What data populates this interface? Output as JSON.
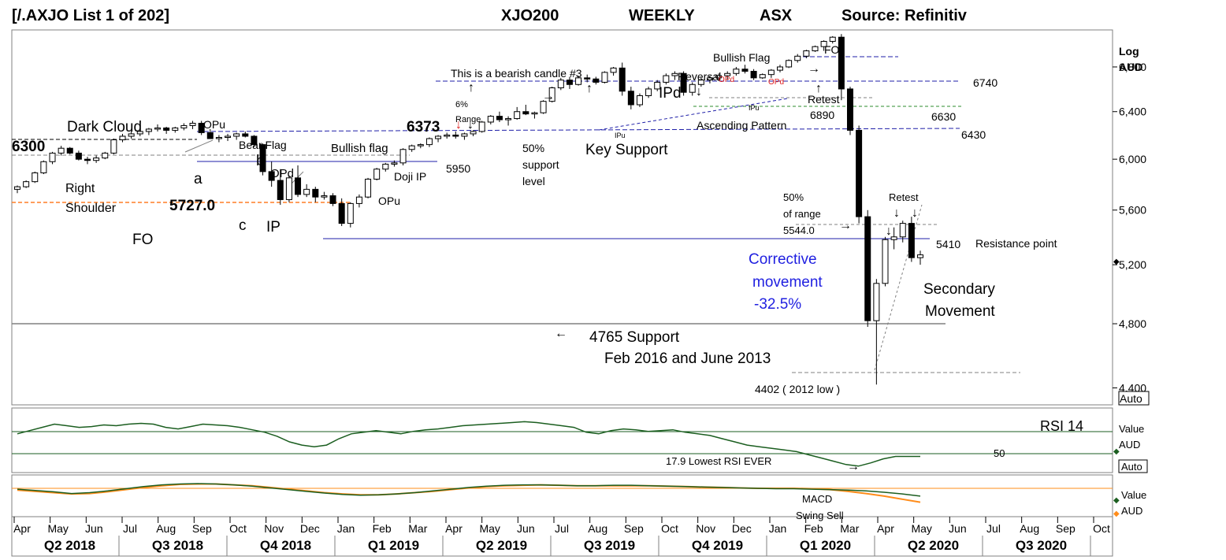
{
  "header": {
    "list_label": "[/.AXJO List 1 of 202]",
    "symbol": "XJO200",
    "period": "WEEKLY",
    "exchange": "ASX",
    "source": "Source: Refinitiv"
  },
  "price_axis": {
    "scale_label": "Log",
    "currency": "AUD",
    "ticks": [
      "6,800",
      "6,400",
      "6,000",
      "5,600",
      "5,200",
      "4,800",
      "4,400"
    ],
    "tick_values": [
      6800,
      6400,
      6000,
      5600,
      5200,
      4800,
      4400
    ],
    "auto_label": "Auto"
  },
  "rsi_panel": {
    "name": "RSI 14",
    "axis_label_1": "Value",
    "axis_label_2": "AUD",
    "auto_label": "Auto",
    "level_label": "50",
    "note": "17.9  Lowest RSI EVER"
  },
  "macd_panel": {
    "name": "MACD",
    "note": "Swing Sell",
    "axis_label_1": "Value",
    "axis_label_2": "AUD"
  },
  "time_axis": {
    "months": [
      "Apr",
      "May",
      "Jun",
      "Jul",
      "Aug",
      "Sep",
      "Oct",
      "Nov",
      "Dec",
      "Jan",
      "Feb",
      "Mar",
      "Apr",
      "May",
      "Jun",
      "Jul",
      "Aug",
      "Sep",
      "Oct",
      "Nov",
      "Dec",
      "Jan",
      "Feb",
      "Mar",
      "Apr",
      "May",
      "Jun",
      "Jul",
      "Aug",
      "Sep",
      "Oct"
    ],
    "quarters": [
      "Q2 2018",
      "Q3 2018",
      "Q4 2018",
      "Q1 2019",
      "Q2 2019",
      "Q3 2019",
      "Q4 2019",
      "Q1 2020",
      "Q2 2020",
      "Q3 2020"
    ]
  },
  "annotations": {
    "dark_cloud": "Dark Cloud",
    "level_6300": "6300",
    "right": "Right",
    "shoulder": "Shoulder",
    "fo_left": "FO",
    "opu_1": "OPu",
    "bear_flag": "Bear Flag",
    "a": "a",
    "b": "b",
    "c": "c",
    "opd_1": "OPd",
    "ip": "IP",
    "level_5727": "5727.0",
    "bullish_flag_1": "Bullish flag",
    "doji_ip": "Doji IP",
    "opu_2": "OPu",
    "level_6373": "6373",
    "pct6": "6%",
    "range": "Range",
    "level_5950": "5950",
    "pct50_a": "50%",
    "support": "support",
    "level": "level",
    "bearish_candle": "This is a bearish candle #3",
    "key_support": "Key Support",
    "ipd": "IPd",
    "ipu_1": "IPu",
    "ipu_2": "IPu",
    "reversal": "Reversal",
    "opd_red": "OPd",
    "opd_red_2": "OPd",
    "ascending_pattern": "Ascending Pattern",
    "bullish_flag_2": "Bullish Flag",
    "fo_top": "FO",
    "retest_1": "Retest",
    "level_6740": "6740",
    "level_6890": "6890",
    "level_6630": "6630",
    "level_6430": "6430",
    "pct50_b": "50%",
    "of_range": "of range",
    "level_5544": "5544.0",
    "retest_2": "Retest",
    "level_5410": "5410",
    "resistance_point": "Resistance point",
    "corrective_1": "Corrective",
    "corrective_2": "movement",
    "corrective_3": "-32.5%",
    "secondary_1": "Secondary",
    "secondary_2": "Movement",
    "support_4765": "4765 Support",
    "feb2016": "Feb 2016 and June 2013",
    "low_4402": "4402 ( 2012 low )"
  },
  "colors": {
    "corrective_text": "#1f1fe0",
    "red_annotation": "#e02020",
    "rsi_line": "#1b5e20",
    "macd_line": "#1b5e20",
    "signal_line": "#ff8c1a",
    "support_dash": "#ff7f27",
    "resistance_blue": "#1f1fa8",
    "green_dash": "#2e8b2e"
  },
  "chart_data": {
    "type": "candlestick",
    "title": "XJO200 WEEKLY ASX",
    "scale": "log",
    "ylim": [
      4300,
      7150
    ],
    "x_range": [
      "2018-04",
      "2020-10"
    ],
    "price_ohlc_weekly": [
      [
        5760,
        5790,
        5730,
        5780
      ],
      [
        5780,
        5830,
        5770,
        5820
      ],
      [
        5820,
        5900,
        5810,
        5890
      ],
      [
        5890,
        5990,
        5880,
        5980
      ],
      [
        5980,
        6060,
        5960,
        6050
      ],
      [
        6050,
        6110,
        6030,
        6090
      ],
      [
        6090,
        6100,
        6040,
        6050
      ],
      [
        6050,
        6070,
        5990,
        6000
      ],
      [
        6000,
        6020,
        5960,
        5990
      ],
      [
        5990,
        6030,
        5970,
        6010
      ],
      [
        6010,
        6060,
        6000,
        6050
      ],
      [
        6050,
        6170,
        6040,
        6160
      ],
      [
        6160,
        6210,
        6140,
        6190
      ],
      [
        6190,
        6240,
        6170,
        6210
      ],
      [
        6210,
        6250,
        6190,
        6230
      ],
      [
        6230,
        6260,
        6200,
        6250
      ],
      [
        6250,
        6290,
        6230,
        6260
      ],
      [
        6260,
        6270,
        6210,
        6240
      ],
      [
        6240,
        6270,
        6220,
        6260
      ],
      [
        6260,
        6300,
        6240,
        6280
      ],
      [
        6280,
        6320,
        6250,
        6300
      ],
      [
        6300,
        6320,
        6200,
        6220
      ],
      [
        6220,
        6250,
        6170,
        6170
      ],
      [
        6170,
        6200,
        6140,
        6180
      ],
      [
        6180,
        6210,
        6150,
        6190
      ],
      [
        6190,
        6220,
        6160,
        6210
      ],
      [
        6210,
        6230,
        6180,
        6190
      ],
      [
        6190,
        6200,
        6100,
        6120
      ],
      [
        6120,
        6130,
        5870,
        5900
      ],
      [
        5900,
        5980,
        5780,
        5830
      ],
      [
        5830,
        5920,
        5640,
        5680
      ],
      [
        5680,
        5870,
        5660,
        5850
      ],
      [
        5850,
        5950,
        5700,
        5720
      ],
      [
        5720,
        5800,
        5700,
        5760
      ],
      [
        5760,
        5780,
        5660,
        5700
      ],
      [
        5700,
        5740,
        5680,
        5710
      ],
      [
        5710,
        5730,
        5630,
        5650
      ],
      [
        5650,
        5690,
        5480,
        5500
      ],
      [
        5500,
        5660,
        5470,
        5650
      ],
      [
        5650,
        5720,
        5620,
        5700
      ],
      [
        5700,
        5850,
        5690,
        5840
      ],
      [
        5840,
        5930,
        5830,
        5920
      ],
      [
        5920,
        5970,
        5900,
        5960
      ],
      [
        5960,
        5990,
        5940,
        5970
      ],
      [
        5970,
        6090,
        5950,
        6080
      ],
      [
        6080,
        6120,
        6060,
        6110
      ],
      [
        6110,
        6130,
        6090,
        6120
      ],
      [
        6120,
        6180,
        6100,
        6170
      ],
      [
        6170,
        6200,
        6140,
        6190
      ],
      [
        6190,
        6220,
        6170,
        6200
      ],
      [
        6200,
        6230,
        6170,
        6190
      ],
      [
        6190,
        6220,
        6160,
        6210
      ],
      [
        6210,
        6240,
        6190,
        6230
      ],
      [
        6230,
        6320,
        6220,
        6310
      ],
      [
        6310,
        6370,
        6290,
        6360
      ],
      [
        6360,
        6400,
        6310,
        6330
      ],
      [
        6330,
        6360,
        6280,
        6340
      ],
      [
        6340,
        6440,
        6330,
        6400
      ],
      [
        6400,
        6460,
        6370,
        6380
      ],
      [
        6380,
        6400,
        6340,
        6390
      ],
      [
        6390,
        6500,
        6380,
        6490
      ],
      [
        6490,
        6620,
        6480,
        6610
      ],
      [
        6610,
        6700,
        6590,
        6680
      ],
      [
        6680,
        6710,
        6600,
        6640
      ],
      [
        6640,
        6720,
        6630,
        6700
      ],
      [
        6700,
        6730,
        6660,
        6690
      ],
      [
        6690,
        6710,
        6640,
        6660
      ],
      [
        6660,
        6760,
        6650,
        6750
      ],
      [
        6750,
        6800,
        6720,
        6790
      ],
      [
        6790,
        6840,
        6540,
        6580
      ],
      [
        6580,
        6620,
        6420,
        6460
      ],
      [
        6460,
        6560,
        6440,
        6540
      ],
      [
        6540,
        6620,
        6520,
        6600
      ],
      [
        6600,
        6680,
        6580,
        6660
      ],
      [
        6660,
        6740,
        6640,
        6720
      ],
      [
        6720,
        6760,
        6680,
        6740
      ],
      [
        6740,
        6760,
        6540,
        6570
      ],
      [
        6570,
        6660,
        6540,
        6640
      ],
      [
        6640,
        6700,
        6620,
        6680
      ],
      [
        6680,
        6720,
        6650,
        6700
      ],
      [
        6700,
        6740,
        6670,
        6720
      ],
      [
        6720,
        6760,
        6680,
        6740
      ],
      [
        6740,
        6800,
        6720,
        6780
      ],
      [
        6780,
        6820,
        6740,
        6760
      ],
      [
        6760,
        6780,
        6680,
        6700
      ],
      [
        6700,
        6740,
        6690,
        6730
      ],
      [
        6730,
        6780,
        6700,
        6770
      ],
      [
        6770,
        6820,
        6750,
        6800
      ],
      [
        6800,
        6870,
        6790,
        6860
      ],
      [
        6860,
        6920,
        6840,
        6900
      ],
      [
        6900,
        6960,
        6880,
        6950
      ],
      [
        6950,
        7000,
        6940,
        6990
      ],
      [
        6990,
        7050,
        6950,
        7040
      ],
      [
        7040,
        7090,
        7020,
        7080
      ],
      [
        7080,
        7110,
        6500,
        6600
      ],
      [
        6600,
        6620,
        6200,
        6240
      ],
      [
        6240,
        6280,
        5500,
        5550
      ],
      [
        5550,
        5600,
        4780,
        4820
      ],
      [
        4820,
        5100,
        4420,
        5070
      ],
      [
        5070,
        5400,
        5050,
        5380
      ],
      [
        5380,
        5470,
        5310,
        5400
      ],
      [
        5400,
        5520,
        5360,
        5500
      ],
      [
        5500,
        5550,
        5220,
        5250
      ],
      [
        5250,
        5300,
        5200,
        5270
      ]
    ],
    "levels": {
      "resistance_6740": 6740,
      "level_6630": 6630,
      "level_6430": 6430,
      "level_6373": 6373,
      "level_6300": 6300,
      "level_5950": 5950,
      "level_5727": 5727,
      "level_5544": 5544,
      "level_5410": 5410,
      "support_4765": 4765,
      "low_4402": 4402
    },
    "rsi_14": [
      58,
      62,
      66,
      70,
      68,
      66,
      67,
      69,
      68,
      70,
      71,
      70,
      66,
      64,
      67,
      70,
      69,
      68,
      66,
      63,
      60,
      55,
      48,
      44,
      42,
      44,
      52,
      58,
      60,
      62,
      60,
      58,
      61,
      63,
      64,
      66,
      68,
      69,
      70,
      71,
      72,
      73,
      72,
      70,
      68,
      66,
      60,
      58,
      62,
      64,
      63,
      61,
      62,
      63,
      60,
      58,
      56,
      52,
      48,
      44,
      42,
      40,
      38,
      36,
      32,
      28,
      24,
      20,
      18,
      22,
      27,
      30,
      30,
      30
    ],
    "macd": [
      -2,
      -5,
      -8,
      -12,
      -10,
      -6,
      -1,
      4,
      8,
      10,
      11,
      10,
      8,
      5,
      1,
      -3,
      -7,
      -11,
      -14,
      -16,
      -15,
      -13,
      -10,
      -6,
      -2,
      2,
      5,
      7,
      8,
      8,
      7,
      6,
      6,
      7,
      7,
      6,
      5,
      4,
      3,
      2,
      1,
      0,
      -1,
      -1,
      -2,
      -3,
      -4,
      -6,
      -9,
      -13,
      -18
    ],
    "macd_signal": [
      -4,
      -7,
      -10,
      -13,
      -12,
      -8,
      -3,
      2,
      6,
      9,
      10,
      10,
      8,
      6,
      2,
      -2,
      -6,
      -10,
      -13,
      -15,
      -15,
      -13,
      -10,
      -7,
      -3,
      1,
      4,
      6,
      7,
      8,
      7,
      6,
      6,
      6,
      6,
      6,
      5,
      4,
      3,
      2,
      1,
      0,
      0,
      0,
      -1,
      -3,
      -7,
      -12,
      -18,
      -25,
      -32
    ]
  }
}
